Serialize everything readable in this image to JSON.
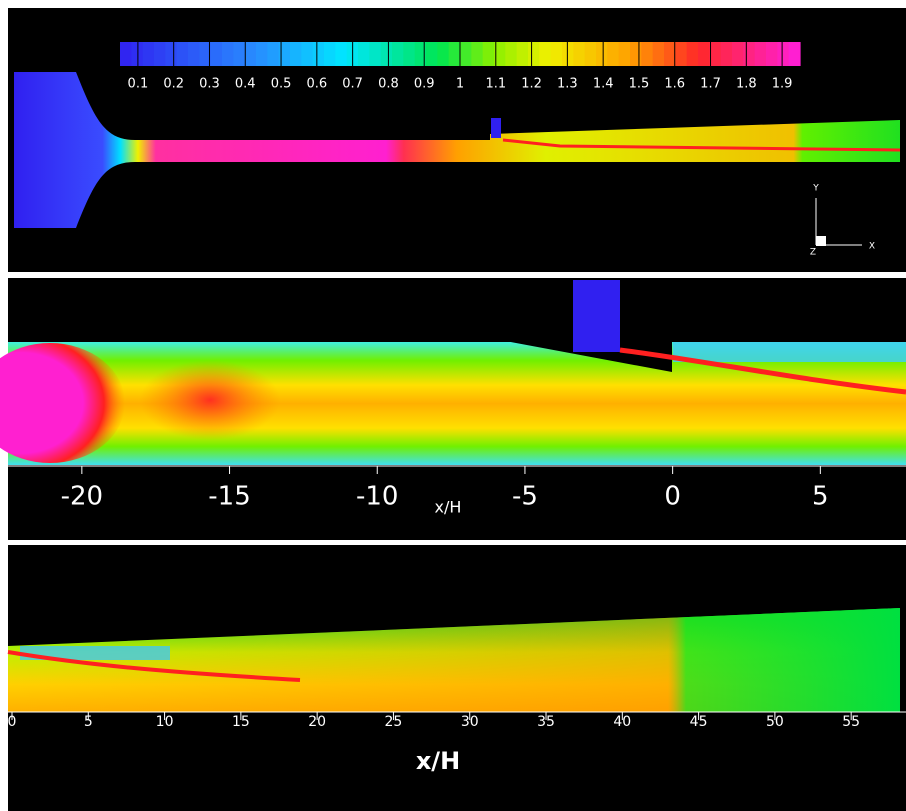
{
  "chart_data": [
    {
      "type": "colorbar",
      "clim": [
        0.05,
        1.95
      ],
      "cticks": [
        0.1,
        0.2,
        0.3,
        0.4,
        0.5,
        0.6,
        0.7,
        0.8,
        0.9,
        1,
        1.1,
        1.2,
        1.3,
        1.4,
        1.5,
        1.6,
        1.7,
        1.8,
        1.9
      ],
      "triad": {
        "x": "X",
        "y": "Y",
        "z": "Z"
      }
    },
    {
      "type": "contour",
      "xlabel": "x/H",
      "xlim": [
        -22.5,
        7.9
      ],
      "xticks": [
        -20,
        -15,
        -10,
        -5,
        0,
        5
      ]
    },
    {
      "type": "contour",
      "xlabel": "x/H",
      "xlim": [
        0,
        58.2
      ],
      "xticks": [
        0,
        5,
        10,
        15,
        20,
        25,
        30,
        35,
        40,
        45,
        50,
        55
      ]
    }
  ]
}
